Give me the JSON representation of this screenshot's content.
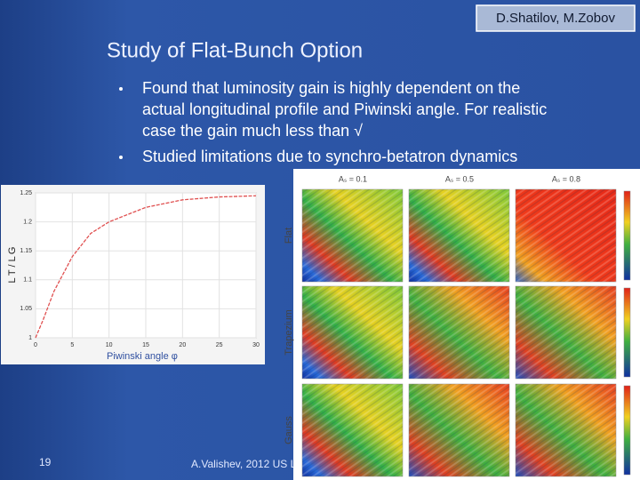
{
  "header": {
    "authors": "D.Shatilov, M.Zobov"
  },
  "title": "Study of Flat-Bunch Option",
  "bullets": [
    "Found that luminosity gain is highly dependent on the",
    "actual longitudinal profile and Piwinski angle. For realistic",
    "case the gain much less than √",
    "Studied limitations due to synchro-betatron dynamics"
  ],
  "plot": {
    "x_label": "Piwinski angle φ",
    "y_label": "L T / L G",
    "x": [
      0,
      1,
      2.5,
      5,
      7.5,
      10,
      15,
      20,
      25,
      30
    ],
    "values": [
      1.0,
      1.03,
      1.08,
      1.14,
      1.18,
      1.2,
      1.225,
      1.238,
      1.243,
      1.245
    ],
    "xlim": [
      0,
      30
    ],
    "ylim": [
      1,
      1.25
    ],
    "xticks": [
      0,
      5,
      10,
      15,
      20,
      25,
      30
    ],
    "yticks": [
      1,
      1.05,
      1.1,
      1.15,
      1.2,
      1.25
    ],
    "color": "#e05050"
  },
  "maps": {
    "columns": [
      "Aₛ = 0.1",
      "Aₛ = 0.5",
      "Aₛ = 0.8"
    ],
    "rows": [
      "Flat",
      "Trapezium",
      "Gauss"
    ]
  },
  "footer": {
    "page": "19",
    "text": "A.Valishev, 2012 US L"
  }
}
